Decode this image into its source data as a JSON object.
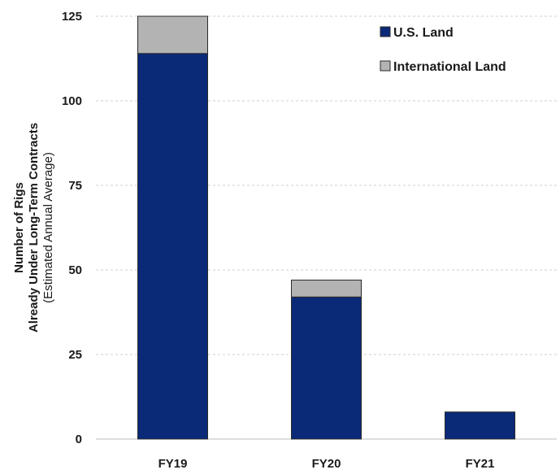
{
  "chart_data": {
    "type": "bar",
    "stacked": true,
    "categories": [
      "FY19",
      "FY20",
      "FY21"
    ],
    "series": [
      {
        "name": "U.S. Land",
        "values": [
          114,
          42,
          8
        ],
        "color": "#0a2a78"
      },
      {
        "name": "International Land",
        "values": [
          11,
          5,
          0
        ],
        "color": "#b3b3b3"
      }
    ],
    "ylabel": "Number of Rigs",
    "ylabel_line2": "Already Under Long-Term Contracts",
    "ylabel_line3": "(Estimated Annual Average)",
    "ylim": [
      0,
      125
    ],
    "yticks": [
      0,
      25,
      50,
      75,
      100,
      125
    ],
    "grid": true,
    "legend_position": "top-right"
  }
}
